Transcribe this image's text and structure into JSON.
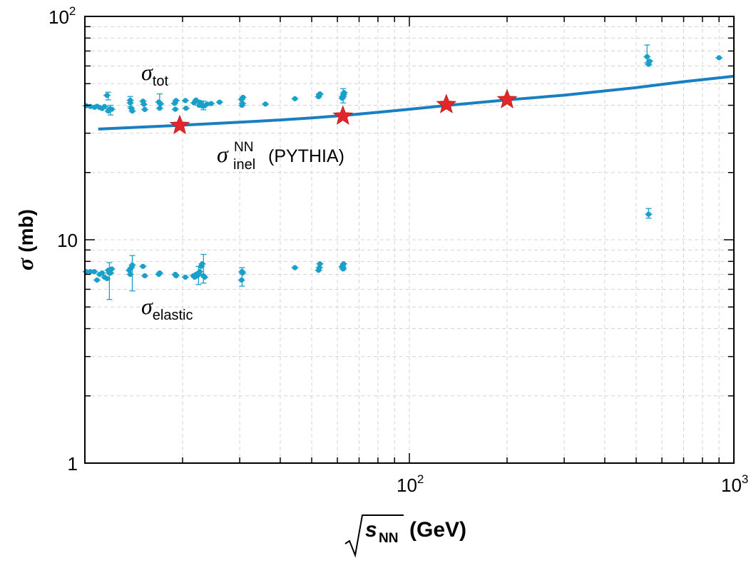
{
  "chart_data": {
    "type": "scatter",
    "xlabel": {
      "base": "s",
      "subscript": "NN",
      "unit": "(GeV)"
    },
    "ylabel": {
      "symbol": "σ",
      "unit": "(mb)"
    },
    "x_scale": "log",
    "y_scale": "log",
    "xlim": [
      10,
      1000
    ],
    "ylim": [
      1,
      100
    ],
    "grid": true,
    "x_ticks": [
      {
        "value": 100,
        "base": "10",
        "exp": "2"
      },
      {
        "value": 1000,
        "base": "10",
        "exp": "3"
      }
    ],
    "y_ticks": [
      {
        "value": 1,
        "base": "1",
        "exp": ""
      },
      {
        "value": 10,
        "base": "10",
        "exp": ""
      },
      {
        "value": 100,
        "base": "10",
        "exp": "2"
      }
    ],
    "annotations": {
      "tot": {
        "symbol": "σ",
        "subscript": "tot"
      },
      "elastic": {
        "symbol": "σ",
        "subscript": "elastic"
      },
      "inel": {
        "symbol": "σ",
        "superscript": "NN",
        "subscript": "inel",
        "suffix": "(PYTHIA)"
      }
    },
    "colors": {
      "data": "#1a9fc9",
      "curve": "#1a7fc1",
      "stars": "#e3262b",
      "axis": "#000000"
    },
    "series": [
      {
        "kind": "points",
        "x": [
          10.1,
          10.4,
          10.7,
          10.9,
          11.1,
          11.3,
          11.5,
          11.7,
          11.8,
          11.9,
          12.0,
          12.1,
          13.8,
          13.8,
          13.9,
          14.0,
          15.1,
          15.2,
          15.3,
          16.9,
          17.0,
          17.1,
          18.9,
          19.0,
          19.1,
          20.4,
          20.5,
          21.7,
          22.0,
          22.5,
          22.7,
          23.0,
          23.4,
          23.8,
          24.5,
          26.0,
          30.4,
          30.5,
          30.6,
          30.7,
          36.0,
          44.4,
          52.5,
          52.8,
          53.0,
          62.1,
          62.3,
          62.5,
          62.7,
          62.9,
          540,
          546,
          550,
          900
        ],
        "y": [
          39.8,
          39.5,
          39.2,
          39.6,
          39.1,
          38.7,
          39.5,
          44.3,
          37.7,
          38.5,
          38.4,
          38.4,
          42.1,
          41.0,
          38.8,
          37.7,
          41.7,
          40.4,
          38.3,
          41.4,
          38.8,
          40.6,
          40.8,
          38.4,
          42.0,
          42.0,
          38.8,
          41.0,
          42.2,
          40.0,
          41.2,
          39.7,
          39.8,
          40.5,
          40.7,
          41.3,
          42.5,
          40.0,
          40.8,
          43.4,
          40.5,
          42.8,
          43.7,
          44.6,
          45.0,
          43.0,
          43.6,
          44.0,
          44.8,
          45.6,
          66.0,
          61.0,
          63.0,
          65.3
        ]
      },
      {
        "kind": "points",
        "x": [
          10.1,
          10.4,
          10.7,
          10.9,
          11.1,
          11.3,
          11.5,
          11.7,
          11.8,
          11.9,
          12.0,
          12.1,
          13.7,
          13.8,
          13.9,
          14.0,
          15.1,
          15.3,
          16.9,
          17.0,
          19.0,
          19.1,
          20.4,
          21.6,
          21.8,
          22.0,
          22.2,
          22.4,
          22.6,
          22.8,
          23.0,
          23.2,
          23.4,
          30.4,
          30.5,
          30.6,
          44.4,
          52.5,
          52.8,
          53.0,
          62.1,
          62.3,
          62.5,
          62.7,
          546
        ],
        "y": [
          7.2,
          7.2,
          7.2,
          6.6,
          7.0,
          7.1,
          6.8,
          6.7,
          7.3,
          7.1,
          7.1,
          7.4,
          7.3,
          7.0,
          7.5,
          7.7,
          7.6,
          6.9,
          7.0,
          7.1,
          7.0,
          6.9,
          6.8,
          6.9,
          6.8,
          7.0,
          6.9,
          7.0,
          7.2,
          7.6,
          7.8,
          6.9,
          6.8,
          6.6,
          7.2,
          7.1,
          7.5,
          7.3,
          7.5,
          7.8,
          7.6,
          7.5,
          7.4,
          7.8,
          13.0
        ]
      },
      {
        "kind": "error-bars",
        "x": [
          11.8,
          12.0,
          13.8,
          17.0,
          23.2,
          62.5,
          540,
          546,
          22.4,
          11.9,
          14.0,
          23.2,
          30.5
        ],
        "low": [
          42.3,
          36.2,
          39.5,
          38.8,
          38.2,
          41.0,
          62.0,
          12.5,
          6.3,
          5.4,
          5.9,
          6.4,
          6.2
        ],
        "high": [
          45.8,
          40.0,
          43.8,
          45.0,
          41.8,
          47.5,
          74.5,
          13.8,
          7.6,
          7.9,
          8.5,
          8.6,
          7.5
        ]
      },
      {
        "kind": "curve",
        "x": [
          11,
          20,
          30,
          40,
          50,
          62.4,
          80,
          100,
          130,
          200,
          300,
          500,
          700,
          1000
        ],
        "y": [
          31.3,
          32.6,
          33.6,
          34.4,
          35.1,
          36.0,
          37.2,
          38.4,
          39.9,
          42.3,
          44.4,
          48.0,
          51.0,
          54.0
        ]
      },
      {
        "kind": "stars",
        "x": [
          19.6,
          62.4,
          130,
          200
        ],
        "y": [
          32.5,
          35.8,
          40.3,
          42.4
        ]
      }
    ]
  }
}
